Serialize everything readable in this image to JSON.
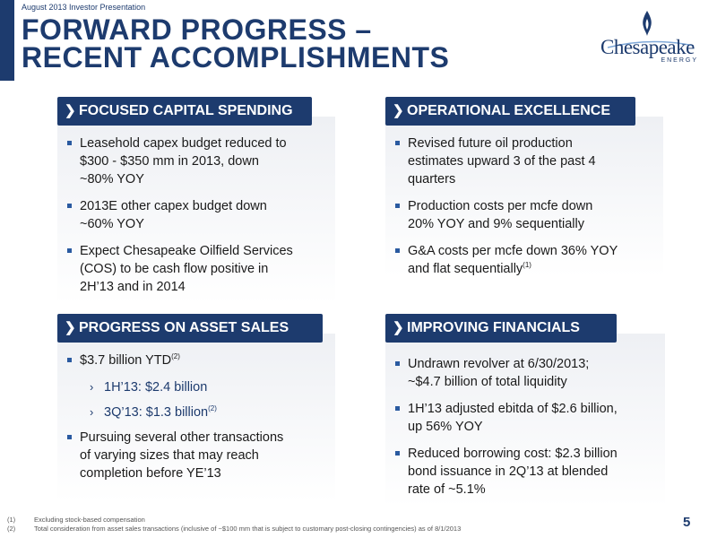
{
  "header": {
    "top_label": "August 2013 Investor Presentation",
    "title_line1": "FORWARD PROGRESS –",
    "title_line2": "RECENT ACCOMPLISHMENTS"
  },
  "logo": {
    "wordmark": "Chesapeake",
    "sub": "ENERGY",
    "icon": "flame-icon"
  },
  "colors": {
    "navy": "#1d3b6e",
    "bullet": "#2a5aa0"
  },
  "panels": {
    "capital": {
      "title": "FOCUSED CAPITAL SPENDING",
      "b1": [
        "Leasehold capex budget reduced to",
        "$300 - $350 mm in 2013, down",
        "~80% YOY"
      ],
      "b2": [
        "2013E other capex budget down",
        "~60% YOY"
      ],
      "b3": [
        "Expect Chesapeake Oilfield Services",
        "(COS) to be cash flow positive in",
        "2H’13 and in 2014"
      ]
    },
    "operational": {
      "title": "OPERATIONAL EXCELLENCE",
      "b1": [
        "Revised future oil production",
        "estimates upward 3 of the past 4",
        "quarters"
      ],
      "b2": [
        "Production costs per mcfe down",
        "20% YOY and 9% sequentially"
      ],
      "b3": [
        "G&A costs per mcfe down 36% YOY",
        "and flat sequentially"
      ],
      "b3_note": "(1)"
    },
    "asset_sales": {
      "title": "PROGRESS ON ASSET SALES",
      "b1": "$3.7 billion YTD",
      "b1_note": "(2)",
      "s1": "1H’13: $2.4 billion",
      "s2": "3Q’13: $1.3 billion",
      "s2_note": "(2)",
      "b2": [
        "Pursuing several other transactions",
        "of varying sizes that may reach",
        "completion before YE’13"
      ]
    },
    "financials": {
      "title": "IMPROVING FINANCIALS",
      "b1": [
        "Undrawn revolver at 6/30/2013;",
        "~$4.7 billion of total liquidity"
      ],
      "b2": [
        "1H’13 adjusted ebitda of $2.6 billion,",
        "up 56% YOY"
      ],
      "b3": [
        "Reduced borrowing cost: $2.3 billion",
        "bond issuance in 2Q’13 at blended",
        "rate of ~5.1%"
      ]
    }
  },
  "footnotes": {
    "n1": "(1)",
    "t1": "Excluding stock-based compensation",
    "n2": "(2)",
    "t2": "Total consideration from asset sales transactions (inclusive of ~$100 mm that is subject to customary post-closing contingencies) as of 8/1/2013"
  },
  "page_number": "5"
}
